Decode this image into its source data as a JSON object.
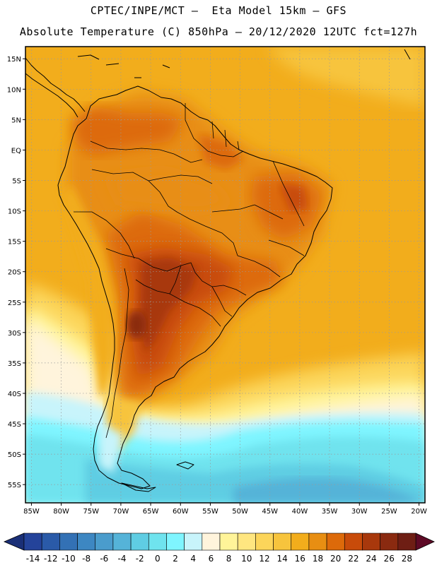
{
  "header": {
    "title_line1": "CPTEC/INPE/MCT –  Eta Model 15km – GFS",
    "title_line2": "Absolute Temperature (C) 850hPa – 20/12/2020 12UTC fct=127h"
  },
  "map": {
    "region": "South America",
    "lon_range": [
      -86,
      -19
    ],
    "lat_range": [
      -58,
      17
    ],
    "grid": true,
    "lat_ticks": [
      {
        "value": 15,
        "label": "15N"
      },
      {
        "value": 10,
        "label": "10N"
      },
      {
        "value": 5,
        "label": "5N"
      },
      {
        "value": 0,
        "label": "EQ"
      },
      {
        "value": -5,
        "label": "5S"
      },
      {
        "value": -10,
        "label": "10S"
      },
      {
        "value": -15,
        "label": "15S"
      },
      {
        "value": -20,
        "label": "20S"
      },
      {
        "value": -25,
        "label": "25S"
      },
      {
        "value": -30,
        "label": "30S"
      },
      {
        "value": -35,
        "label": "35S"
      },
      {
        "value": -40,
        "label": "40S"
      },
      {
        "value": -45,
        "label": "45S"
      },
      {
        "value": -50,
        "label": "50S"
      },
      {
        "value": -55,
        "label": "55S"
      }
    ],
    "lon_ticks": [
      {
        "value": -85,
        "label": "85W"
      },
      {
        "value": -80,
        "label": "80W"
      },
      {
        "value": -75,
        "label": "75W"
      },
      {
        "value": -70,
        "label": "70W"
      },
      {
        "value": -65,
        "label": "65W"
      },
      {
        "value": -60,
        "label": "60W"
      },
      {
        "value": -55,
        "label": "55W"
      },
      {
        "value": -50,
        "label": "50W"
      },
      {
        "value": -45,
        "label": "45W"
      },
      {
        "value": -40,
        "label": "40W"
      },
      {
        "value": -35,
        "label": "35W"
      },
      {
        "value": -30,
        "label": "30W"
      },
      {
        "value": -25,
        "label": "25W"
      },
      {
        "value": -20,
        "label": "20W"
      }
    ]
  },
  "colorbar": {
    "labels": [
      "-14",
      "-12",
      "-10",
      "-8",
      "-6",
      "-4",
      "-2",
      "0",
      "2",
      "4",
      "6",
      "8",
      "10",
      "12",
      "14",
      "16",
      "18",
      "20",
      "22",
      "24",
      "26",
      "28"
    ],
    "colors": [
      "#24439a",
      "#2a5aa8",
      "#3371b5",
      "#3d87c2",
      "#4a9ccc",
      "#55b3d8",
      "#5fcde3",
      "#6fe3ee",
      "#7ff5ff",
      "#c8f4fb",
      "#fff4dc",
      "#fff499",
      "#ffe680",
      "#fcd55a",
      "#f7c43d",
      "#f2ad1c",
      "#e88e12",
      "#dd6a0a",
      "#c84b0a",
      "#a8380c",
      "#8a2a10",
      "#6e1e14"
    ],
    "low_arrow_color": "#1a2f77",
    "high_arrow_color": "#5e0a26"
  }
}
